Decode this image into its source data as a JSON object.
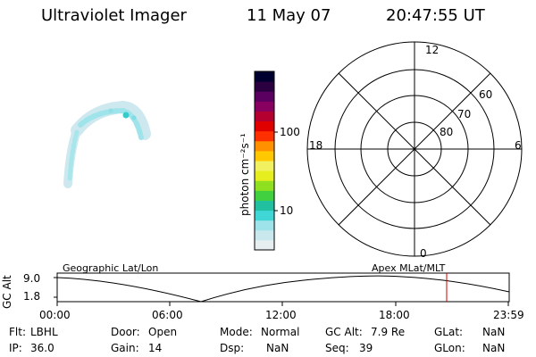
{
  "header": {
    "instrument": "Ultraviolet Imager",
    "date": "11 May 07",
    "time": "20:47:55 UT"
  },
  "colorbar": {
    "unit_label": "photon cm⁻²s⁻¹",
    "ticks": [
      "100",
      "10"
    ],
    "scale": "log",
    "colors": [
      "#e6eef0",
      "#c8e8ee",
      "#9ee3ea",
      "#40d6d6",
      "#20c0a0",
      "#40d040",
      "#8ee020",
      "#e6ee20",
      "#f0f060",
      "#ffc800",
      "#ff9000",
      "#ff3000",
      "#e00000",
      "#b40030",
      "#880060",
      "#5a0060",
      "#2a0040",
      "#000030"
    ]
  },
  "polar": {
    "mlt_labels": {
      "top": "12",
      "left": "18",
      "right": "6",
      "bottom": "0"
    },
    "lat_labels": [
      "60",
      "70",
      "80"
    ]
  },
  "strip": {
    "ylabel": "GC Alt",
    "yticks": [
      "9.0",
      "1.8"
    ],
    "left_label": "Geographic Lat/Lon",
    "right_label": "Apex MLat/MLT",
    "xticks": [
      "00:00",
      "06:00",
      "12:00",
      "18:00",
      "23:59"
    ],
    "marker_color": "#d00000"
  },
  "info": [
    {
      "k": "Flt:",
      "v": "LBHL"
    },
    {
      "k": "Door:",
      "v": "Open"
    },
    {
      "k": "Mode:",
      "v": "Normal"
    },
    {
      "k": "GC Alt:",
      "v": "7.9 Re"
    },
    {
      "k": "GLat:",
      "v": "NaN"
    },
    {
      "k": "IP:",
      "v": "36.0"
    },
    {
      "k": "Gain:",
      "v": "14"
    },
    {
      "k": "Dsp:",
      "v": "NaN"
    },
    {
      "k": "Seq:",
      "v": "39"
    },
    {
      "k": "GLon:",
      "v": "NaN"
    }
  ]
}
